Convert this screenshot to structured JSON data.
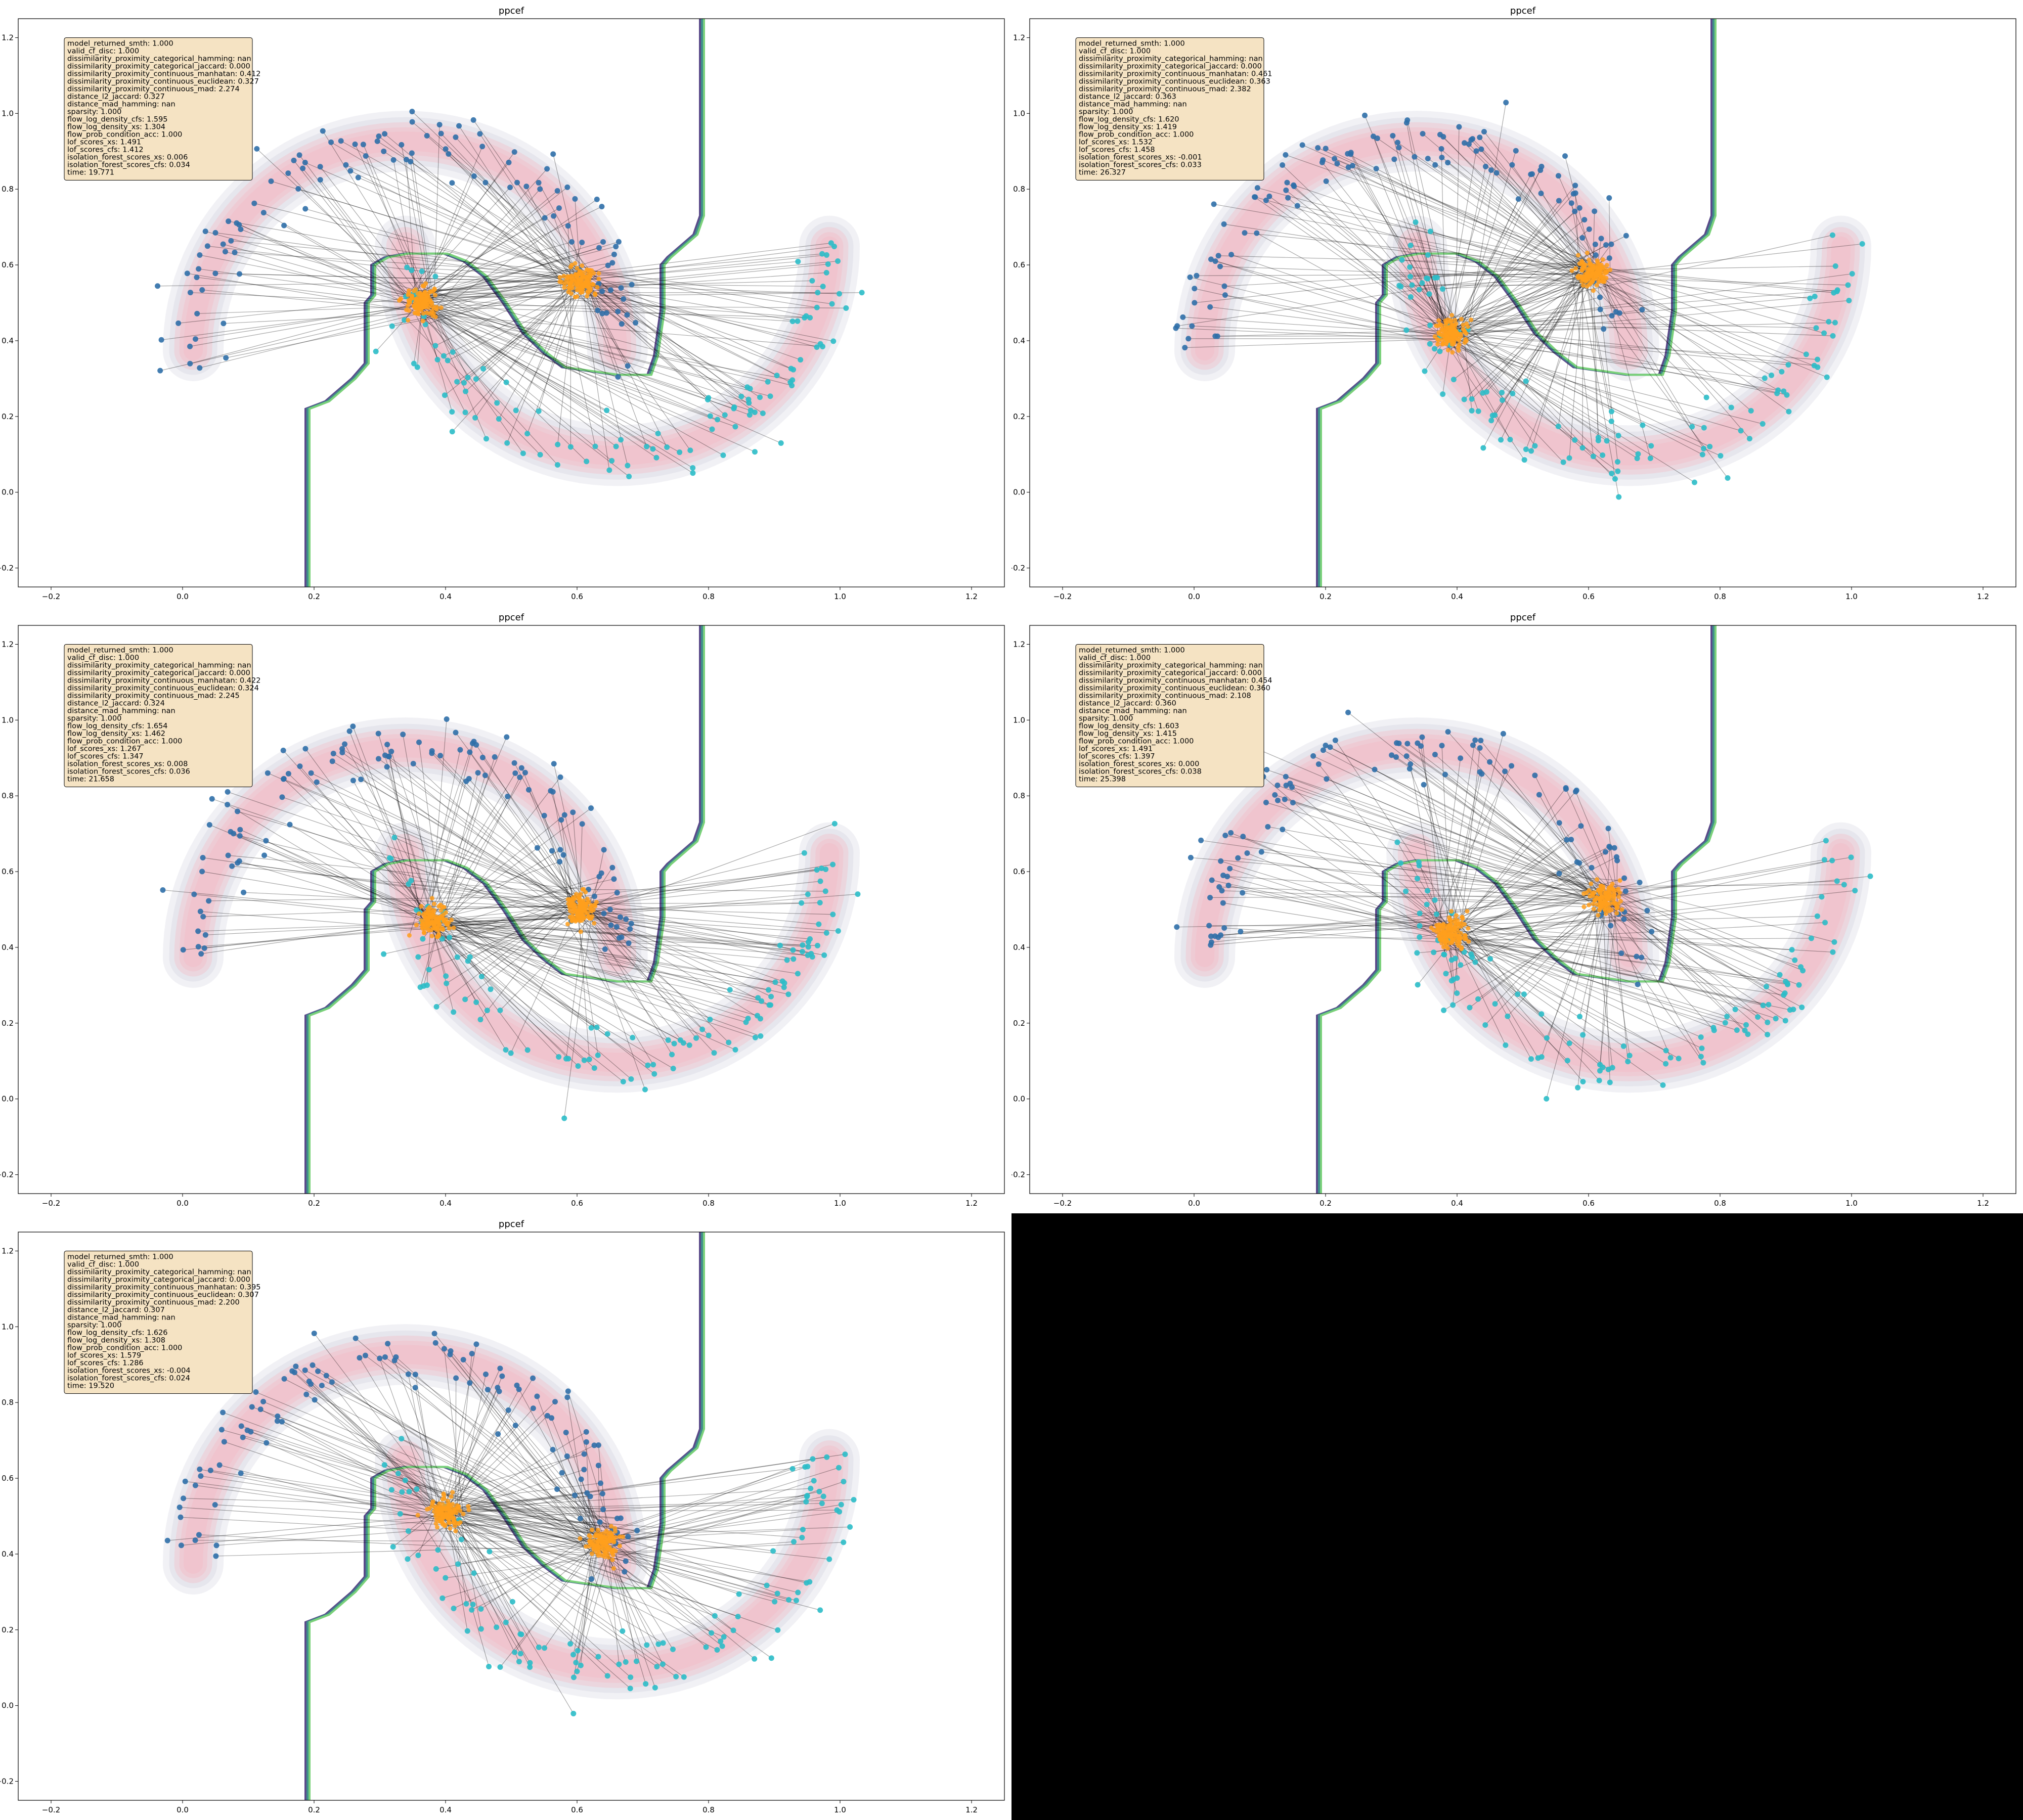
{
  "figure": {
    "background": "#ffffff"
  },
  "style": {
    "class0_color": "#2f6fa8",
    "class1_color": "#2bbcc8",
    "cf_color": "#ff9f1c",
    "density_fill": "#f4b8c4",
    "boundary_colors": [
      "#5a4a8a",
      "#3f8f8a",
      "#7ad17a"
    ],
    "info_box_fill": "#f5e3c3"
  },
  "chart_data": [
    {
      "type": "scatter",
      "title": "ppcef",
      "xlim": [
        -0.25,
        1.25
      ],
      "ylim": [
        -0.25,
        1.25
      ],
      "x_ticks": [
        "−0.2",
        "0.0",
        "0.2",
        "0.4",
        "0.6",
        "0.8",
        "1.0",
        "1.2"
      ],
      "y_ticks": [
        "−0.2",
        "0.0",
        "0.2",
        "0.4",
        "0.6",
        "0.8",
        "1.0",
        "1.2"
      ],
      "grid": false,
      "cf_centers": [
        [
          0.365,
          0.5
        ],
        [
          0.605,
          0.56
        ]
      ],
      "metrics": [
        "model_returned_smth: 1.000",
        "valid_cf_disc: 1.000",
        "dissimilarity_proximity_categorical_hamming: nan",
        "dissimilarity_proximity_categorical_jaccard: 0.000",
        "dissimilarity_proximity_continuous_manhatan: 0.412",
        "dissimilarity_proximity_continuous_euclidean: 0.327",
        "dissimilarity_proximity_continuous_mad: 2.274",
        "distance_l2_jaccard: 0.327",
        "distance_mad_hamming: nan",
        "sparsity: 1.000",
        "flow_log_density_cfs: 1.595",
        "flow_log_density_xs: 1.304",
        "flow_prob_condition_acc: 1.000",
        "lof_scores_xs: 1.491",
        "lof_scores_cfs: 1.412",
        "isolation_forest_scores_xs: 0.006",
        "isolation_forest_scores_cfs: 0.034",
        "time: 19.771"
      ]
    },
    {
      "type": "scatter",
      "title": "ppcef",
      "xlim": [
        -0.25,
        1.25
      ],
      "ylim": [
        -0.25,
        1.25
      ],
      "x_ticks": [
        "−0.2",
        "0.0",
        "0.2",
        "0.4",
        "0.6",
        "0.8",
        "1.0",
        "1.2"
      ],
      "y_ticks": [
        "−0.2",
        "0.0",
        "0.2",
        "0.4",
        "0.6",
        "0.8",
        "1.0",
        "1.2"
      ],
      "grid": false,
      "cf_centers": [
        [
          0.39,
          0.42
        ],
        [
          0.605,
          0.58
        ]
      ],
      "metrics": [
        "model_returned_smth: 1.000",
        "valid_cf_disc: 1.000",
        "dissimilarity_proximity_categorical_hamming: nan",
        "dissimilarity_proximity_categorical_jaccard: 0.000",
        "dissimilarity_proximity_continuous_manhatan: 0.461",
        "dissimilarity_proximity_continuous_euclidean: 0.363",
        "dissimilarity_proximity_continuous_mad: 2.382",
        "distance_l2_jaccard: 0.363",
        "distance_mad_hamming: nan",
        "sparsity: 1.000",
        "flow_log_density_cfs: 1.620",
        "flow_log_density_xs: 1.419",
        "flow_prob_condition_acc: 1.000",
        "lof_scores_xs: 1.532",
        "lof_scores_cfs: 1.458",
        "isolation_forest_scores_xs: -0.001",
        "isolation_forest_scores_cfs: 0.033",
        "time: 26.327"
      ]
    },
    {
      "type": "scatter",
      "title": "ppcef",
      "xlim": [
        -0.25,
        1.25
      ],
      "ylim": [
        -0.25,
        1.25
      ],
      "x_ticks": [
        "−0.2",
        "0.0",
        "0.2",
        "0.4",
        "0.6",
        "0.8",
        "1.0",
        "1.2"
      ],
      "y_ticks": [
        "−0.2",
        "0.0",
        "0.2",
        "0.4",
        "0.6",
        "0.8",
        "1.0",
        "1.2"
      ],
      "grid": false,
      "cf_centers": [
        [
          0.38,
          0.47
        ],
        [
          0.605,
          0.5
        ]
      ],
      "metrics": [
        "model_returned_smth: 1.000",
        "valid_cf_disc: 1.000",
        "dissimilarity_proximity_categorical_hamming: nan",
        "dissimilarity_proximity_categorical_jaccard: 0.000",
        "dissimilarity_proximity_continuous_manhatan: 0.422",
        "dissimilarity_proximity_continuous_euclidean: 0.324",
        "dissimilarity_proximity_continuous_mad: 2.245",
        "distance_l2_jaccard: 0.324",
        "distance_mad_hamming: nan",
        "sparsity: 1.000",
        "flow_log_density_cfs: 1.654",
        "flow_log_density_xs: 1.462",
        "flow_prob_condition_acc: 1.000",
        "lof_scores_xs: 1.267",
        "lof_scores_cfs: 1.347",
        "isolation_forest_scores_xs: 0.008",
        "isolation_forest_scores_cfs: 0.036",
        "time: 21.658"
      ]
    },
    {
      "type": "scatter",
      "title": "ppcef",
      "xlim": [
        -0.25,
        1.25
      ],
      "ylim": [
        -0.25,
        1.25
      ],
      "x_ticks": [
        "−0.2",
        "0.0",
        "0.2",
        "0.4",
        "0.6",
        "0.8",
        "1.0",
        "1.2"
      ],
      "y_ticks": [
        "−0.2",
        "0.0",
        "0.2",
        "0.4",
        "0.6",
        "0.8",
        "1.0",
        "1.2"
      ],
      "grid": false,
      "cf_centers": [
        [
          0.39,
          0.44
        ],
        [
          0.625,
          0.53
        ]
      ],
      "metrics": [
        "model_returned_smth: 1.000",
        "valid_cf_disc: 1.000",
        "dissimilarity_proximity_categorical_hamming: nan",
        "dissimilarity_proximity_categorical_jaccard: 0.000",
        "dissimilarity_proximity_continuous_manhatan: 0.454",
        "dissimilarity_proximity_continuous_euclidean: 0.360",
        "dissimilarity_proximity_continuous_mad: 2.108",
        "distance_l2_jaccard: 0.360",
        "distance_mad_hamming: nan",
        "sparsity: 1.000",
        "flow_log_density_cfs: 1.603",
        "flow_log_density_xs: 1.415",
        "flow_prob_condition_acc: 1.000",
        "lof_scores_xs: 1.491",
        "lof_scores_cfs: 1.397",
        "isolation_forest_scores_xs: 0.000",
        "isolation_forest_scores_cfs: 0.038",
        "time: 25.398"
      ]
    },
    {
      "type": "scatter",
      "title": "ppcef",
      "xlim": [
        -0.25,
        1.25
      ],
      "ylim": [
        -0.25,
        1.25
      ],
      "x_ticks": [
        "−0.2",
        "0.0",
        "0.2",
        "0.4",
        "0.6",
        "0.8",
        "1.0",
        "1.2"
      ],
      "y_ticks": [
        "−0.2",
        "0.0",
        "0.2",
        "0.4",
        "0.6",
        "0.8",
        "1.0",
        "1.2"
      ],
      "grid": false,
      "cf_centers": [
        [
          0.4,
          0.51
        ],
        [
          0.64,
          0.43
        ]
      ],
      "metrics": [
        "model_returned_smth: 1.000",
        "valid_cf_disc: 1.000",
        "dissimilarity_proximity_categorical_hamming: nan",
        "dissimilarity_proximity_categorical_jaccard: 0.000",
        "dissimilarity_proximity_continuous_manhatan: 0.395",
        "dissimilarity_proximity_continuous_euclidean: 0.307",
        "dissimilarity_proximity_continuous_mad: 2.200",
        "distance_l2_jaccard: 0.307",
        "distance_mad_hamming: nan",
        "sparsity: 1.000",
        "flow_log_density_cfs: 1.626",
        "flow_log_density_xs: 1.308",
        "flow_prob_condition_acc: 1.000",
        "lof_scores_xs: 1.579",
        "lof_scores_cfs: 1.286",
        "isolation_forest_scores_xs: -0.004",
        "isolation_forest_scores_cfs: 0.024",
        "time: 19.520"
      ]
    }
  ]
}
